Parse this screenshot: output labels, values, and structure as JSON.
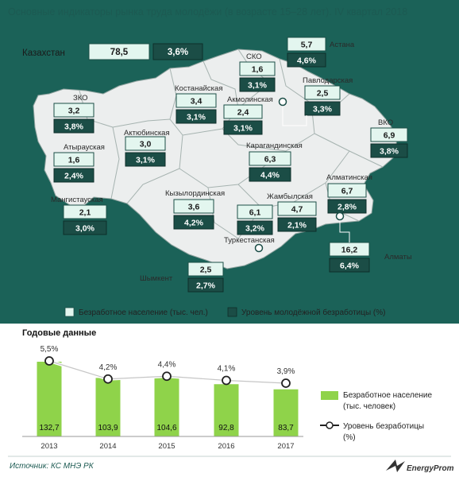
{
  "title": "Основные индикаторы рынка труда молодёжи (в возрасте 15–28  лет). IV квартал 2018",
  "colors": {
    "map_bg": "#1b6258",
    "region_fill": "#eceeee",
    "box_light": "#e3f6ef",
    "box_dark": "#1b4d46",
    "bar_green": "#8fd34a",
    "line": "#ffffff",
    "accent": "#1c5a52"
  },
  "kazakhstan": {
    "name": "Казахстан",
    "unemployed": "78,5",
    "rate": "3,6%"
  },
  "regions": [
    {
      "name": "ЗКО",
      "unemployed": "3,2",
      "rate": "3,8%"
    },
    {
      "name": "Атырауская",
      "unemployed": "1,6",
      "rate": "2,4%"
    },
    {
      "name": "Мангистауская",
      "unemployed": "2,1",
      "rate": "3,0%"
    },
    {
      "name": "Актюбинская",
      "unemployed": "3,0",
      "rate": "3,1%"
    },
    {
      "name": "Костанайская",
      "unemployed": "3,4",
      "rate": "3,1%"
    },
    {
      "name": "СКО",
      "unemployed": "1,6",
      "rate": "3,1%"
    },
    {
      "name": "Акмолинская",
      "unemployed": "2,4",
      "rate": "3,1%"
    },
    {
      "name": "Астана",
      "unemployed": "5,7",
      "rate": "4,6%"
    },
    {
      "name": "Павлодарская",
      "unemployed": "2,5",
      "rate": "3,3%"
    },
    {
      "name": "ВКО",
      "unemployed": "6,9",
      "rate": "3,8%"
    },
    {
      "name": "Карагандинская",
      "unemployed": "6,3",
      "rate": "4,4%"
    },
    {
      "name": "Кызылординская",
      "unemployed": "3,6",
      "rate": "4,2%"
    },
    {
      "name": "Жамбылская",
      "unemployed": "4,7",
      "rate": "2,1%"
    },
    {
      "name": "Алматинская",
      "unemployed": "6,7",
      "rate": "2,8%"
    },
    {
      "name": "Алматы",
      "unemployed": "16,2",
      "rate": "6,4%"
    },
    {
      "name": "Туркестанская",
      "unemployed": "6,1",
      "rate": "3,2%"
    },
    {
      "name": "Шымкент",
      "unemployed": "2,5",
      "rate": "2,7%"
    }
  ],
  "legend": {
    "unemployed": "Безработное население (тыс. чел.)",
    "rate": "Уровень молодёжной безработицы (%)"
  },
  "chart_data": {
    "type": "bar",
    "title": "Годовые данные",
    "categories": [
      "2013",
      "2014",
      "2015",
      "2016",
      "2017"
    ],
    "series": [
      {
        "name": "Безработное население (тыс. человек)",
        "type": "bar",
        "values": [
          132.7,
          103.9,
          104.6,
          92.8,
          83.7
        ]
      },
      {
        "name": "Уровень безработицы (%)",
        "type": "line",
        "values": [
          5.5,
          4.2,
          4.4,
          4.1,
          3.9
        ]
      }
    ],
    "bar_labels": [
      "132,7",
      "103,9",
      "104,6",
      "92,8",
      "83,7"
    ],
    "line_labels": [
      "5,5%",
      "4,2%",
      "4,4%",
      "4,1%",
      "3,9%"
    ],
    "legend": [
      "Безработное население",
      "(тыс. человек)",
      "Уровень безработицы",
      "(%)"
    ],
    "legend_placement": "right"
  },
  "source": "Источник: КС МНЭ РК",
  "logo": "EnergyProm"
}
